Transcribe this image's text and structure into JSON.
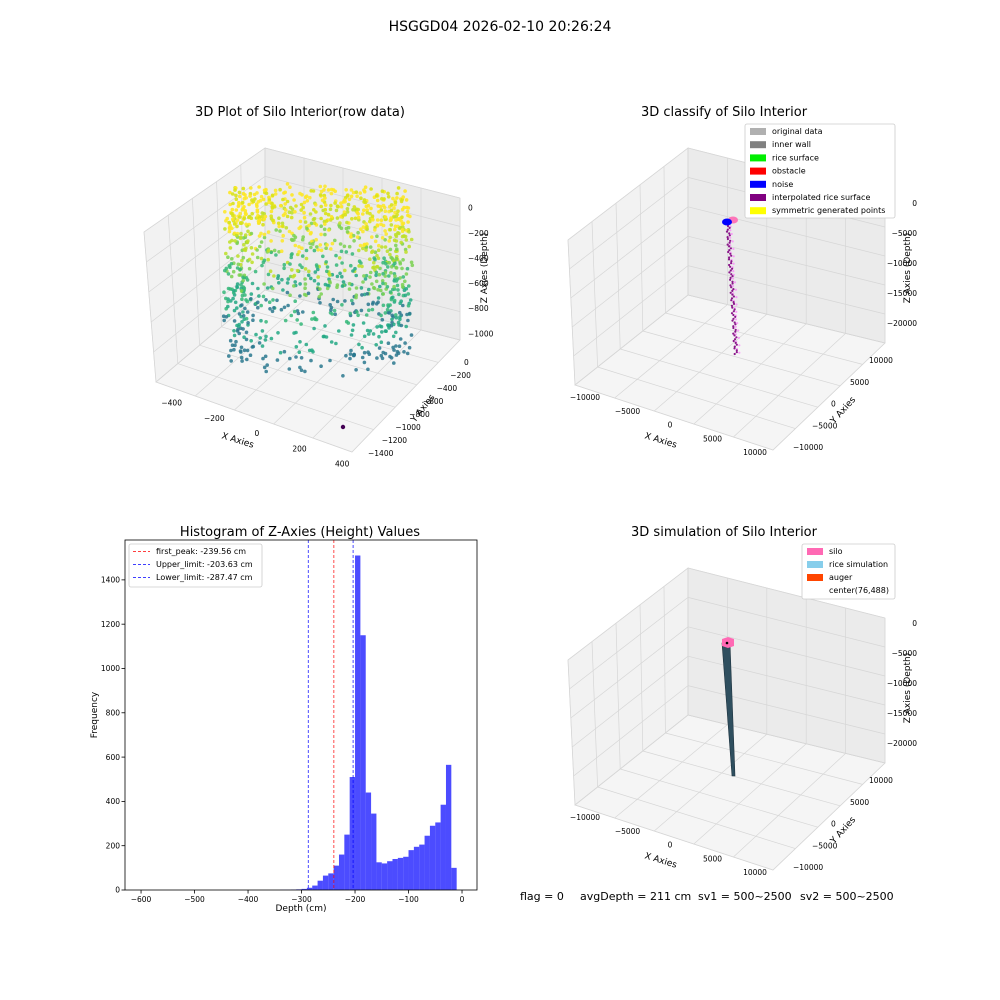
{
  "figure": {
    "suptitle": "HSGGD04 2026-02-10 20:26:24",
    "footer": {
      "flag": "flag = 0",
      "avg_depth": "avgDepth = 211 cm",
      "sv1": "sv1 = 500~2500",
      "sv2": "sv2 = 500~2500"
    }
  },
  "chart_data": [
    {
      "type": "scatter",
      "projection": "3d",
      "title": "3D Plot of Silo Interior(row data)",
      "xlabel": "X Axies",
      "ylabel": "Y Axies",
      "zlabel": "Z Axies (Depth)",
      "x_ticks": [
        "−400",
        "−200",
        "0",
        "200",
        "400"
      ],
      "y_ticks": [
        "0",
        "−200",
        "−400",
        "−600",
        "−800",
        "−1000",
        "−1200",
        "−1400"
      ],
      "z_ticks": [
        "0",
        "−200",
        "−400",
        "−600",
        "−800",
        "−1000"
      ],
      "xlim": [
        -500,
        500
      ],
      "ylim": [
        -1450,
        50
      ],
      "zlim": [
        -1000,
        0
      ],
      "colormap": "viridis",
      "outlier_point": {
        "x": 400,
        "y": -1300,
        "z": -1000
      },
      "grid": true
    },
    {
      "type": "scatter",
      "projection": "3d",
      "title": "3D classify of Silo Interior",
      "xlabel": "X Axies",
      "ylabel": "Y Axies",
      "zlabel": "Z Axies (Depth)",
      "x_ticks": [
        "−10000",
        "−5000",
        "0",
        "5000",
        "10000"
      ],
      "y_ticks": [
        "10000",
        "5000",
        "0",
        "−5000",
        "−10000"
      ],
      "z_ticks": [
        "0",
        "−5000",
        "−10000",
        "−15000",
        "−20000"
      ],
      "legend": [
        {
          "label": "original data",
          "color": "#b0b0b0"
        },
        {
          "label": "inner wall",
          "color": "#808080"
        },
        {
          "label": "rice surface",
          "color": "#00ee00"
        },
        {
          "label": "obstacle",
          "color": "#ff0000"
        },
        {
          "label": "noise",
          "color": "#0000ff"
        },
        {
          "label": "interpolated rice surface",
          "color": "#800080"
        },
        {
          "label": "symmetric generated points",
          "color": "#ffff00"
        }
      ],
      "legend_loc": "upper right",
      "grid": true
    },
    {
      "type": "bar",
      "title": "Histogram of Z-Axies (Height) Values",
      "xlabel": "Depth (cm)",
      "ylabel": "Frequency",
      "x_ticks": [
        "−600",
        "−500",
        "−400",
        "−300",
        "−200",
        "−100",
        "0"
      ],
      "y_ticks": [
        "0",
        "200",
        "400",
        "600",
        "800",
        "1000",
        "1200",
        "1400"
      ],
      "xlim": [
        -630,
        28
      ],
      "ylim": [
        0,
        1580
      ],
      "bar_color": "#0000ff",
      "bin_width": 10,
      "bins": [
        [
          -610,
          0
        ],
        [
          -600,
          0
        ],
        [
          -590,
          0
        ],
        [
          -580,
          0
        ],
        [
          -570,
          0
        ],
        [
          -560,
          0
        ],
        [
          -550,
          0
        ],
        [
          -540,
          0
        ],
        [
          -530,
          0
        ],
        [
          -520,
          0
        ],
        [
          -510,
          0
        ],
        [
          -500,
          0
        ],
        [
          -490,
          0
        ],
        [
          -480,
          0
        ],
        [
          -470,
          0
        ],
        [
          -460,
          0
        ],
        [
          -450,
          0
        ],
        [
          -440,
          0
        ],
        [
          -430,
          0
        ],
        [
          -420,
          0
        ],
        [
          -410,
          0
        ],
        [
          -400,
          1
        ],
        [
          -390,
          1
        ],
        [
          -380,
          2
        ],
        [
          -370,
          3
        ],
        [
          -360,
          5
        ],
        [
          -350,
          10
        ],
        [
          -340,
          20
        ],
        [
          -330,
          42
        ],
        [
          -320,
          65
        ],
        [
          -310,
          75
        ],
        [
          -300,
          110
        ],
        [
          -290,
          160
        ],
        [
          -280,
          250
        ],
        [
          -270,
          510
        ],
        [
          -260,
          1510
        ],
        [
          -250,
          1150
        ],
        [
          -240,
          440
        ],
        [
          -230,
          345
        ],
        [
          -220,
          125
        ],
        [
          -210,
          120
        ],
        [
          -200,
          130
        ],
        [
          -190,
          140
        ],
        [
          -180,
          145
        ],
        [
          -170,
          150
        ],
        [
          -160,
          180
        ],
        [
          -150,
          195
        ],
        [
          -140,
          205
        ],
        [
          -130,
          245
        ],
        [
          -120,
          290
        ],
        [
          -110,
          305
        ],
        [
          -100,
          385
        ],
        [
          -90,
          565
        ],
        [
          -80,
          100
        ]
      ],
      "bins_note_x_shift": 60,
      "vlines": [
        {
          "label": "first_peak: -239.56 cm",
          "x": -239.56,
          "color": "#ff0000"
        },
        {
          "label": "Upper_limit: -203.63 cm",
          "x": -203.63,
          "color": "#0000ff"
        },
        {
          "label": "Lower_limit: -287.47 cm",
          "x": -287.47,
          "color": "#0000ff"
        }
      ],
      "legend_loc": "upper left",
      "grid": false
    },
    {
      "type": "surface",
      "projection": "3d",
      "title": "3D simulation of Silo Interior",
      "xlabel": "X Axies",
      "ylabel": "Y Axies",
      "zlabel": "Z Axies (Depth)",
      "x_ticks": [
        "−10000",
        "−5000",
        "0",
        "5000",
        "10000"
      ],
      "y_ticks": [
        "10000",
        "5000",
        "0",
        "−5000",
        "−10000"
      ],
      "z_ticks": [
        "0",
        "−5000",
        "−10000",
        "−15000",
        "−20000"
      ],
      "legend": [
        {
          "label": "silo",
          "color": "#ff69b4"
        },
        {
          "label": "rice simulation",
          "color": "#87ceeb"
        },
        {
          "label": "auger",
          "color": "#ff4500"
        },
        {
          "label": "center(76,488)",
          "color": ""
        }
      ],
      "legend_loc": "upper right",
      "grid": true
    }
  ]
}
